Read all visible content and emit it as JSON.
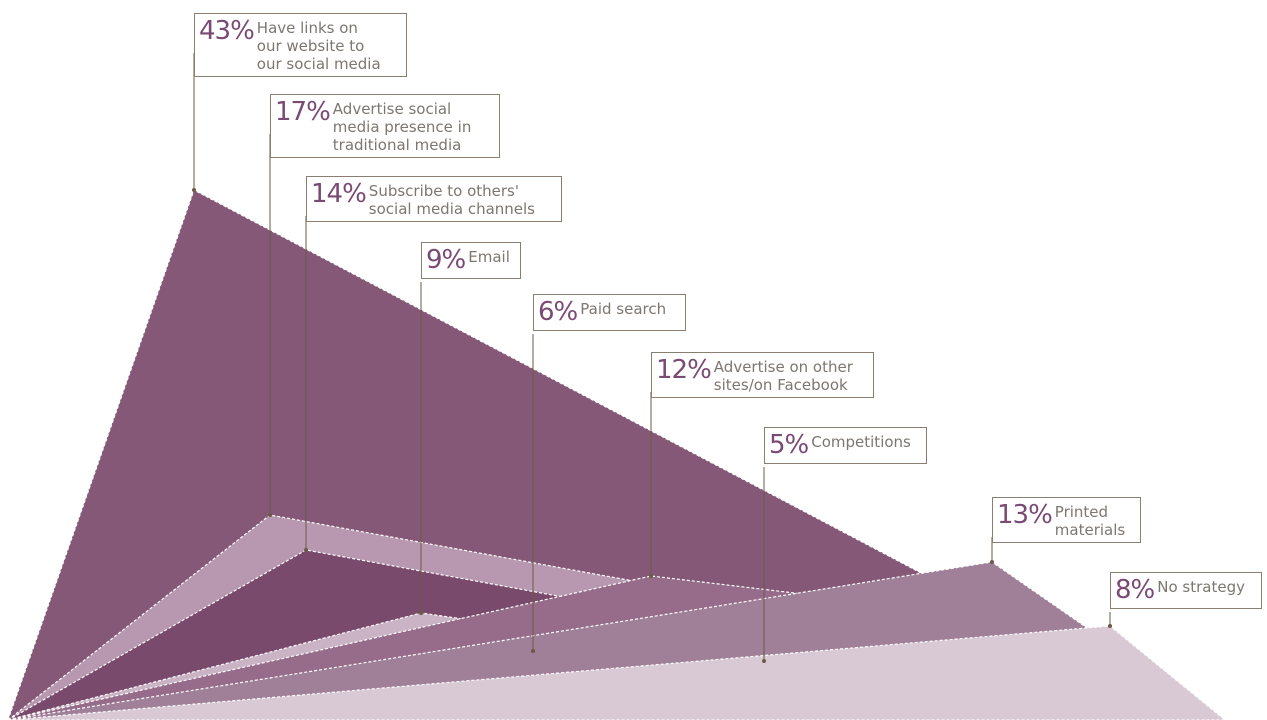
{
  "colors": {
    "label_text": "#7c7770",
    "percent_text": "#7a4a75",
    "leader_line": "#6b5a45"
  },
  "chart_data": {
    "type": "area",
    "unit": "%",
    "categories": [
      "Have links on our website to our social media",
      "Advertise social media presence in traditional media",
      "Subscribe to others' social media channels",
      "Email",
      "Paid search",
      "Advertise on other sites/on Facebook",
      "Competitions",
      "Printed materials",
      "No strategy"
    ],
    "series": [
      {
        "percent": "43%",
        "value": 43,
        "label": "Have links on\nour website to\nour social media",
        "color": "#845876"
      },
      {
        "percent": "17%",
        "value": 17,
        "label": "Advertise social\nmedia presence in\ntraditional media",
        "color": "#b898b0"
      },
      {
        "percent": "14%",
        "value": 14,
        "label": "Subscribe to others'\nsocial media channels",
        "color": "#7a4a6c"
      },
      {
        "percent": "9%",
        "value": 9,
        "label": "Email",
        "color": "#c9b3c5"
      },
      {
        "percent": "6%",
        "value": 6,
        "label": "Paid search",
        "color": "#a98da6"
      },
      {
        "percent": "12%",
        "value": 12,
        "label": "Advertise on other\nsites/on Facebook",
        "color": "#966c8a"
      },
      {
        "percent": "5%",
        "value": 5,
        "label": "Competitions",
        "color": "#6f3660"
      },
      {
        "percent": "13%",
        "value": 13,
        "label": "Printed\nmaterials",
        "color": "#a07f98"
      },
      {
        "percent": "8%",
        "value": 8,
        "label": "No strategy",
        "color": "#d9c9d5"
      }
    ]
  }
}
